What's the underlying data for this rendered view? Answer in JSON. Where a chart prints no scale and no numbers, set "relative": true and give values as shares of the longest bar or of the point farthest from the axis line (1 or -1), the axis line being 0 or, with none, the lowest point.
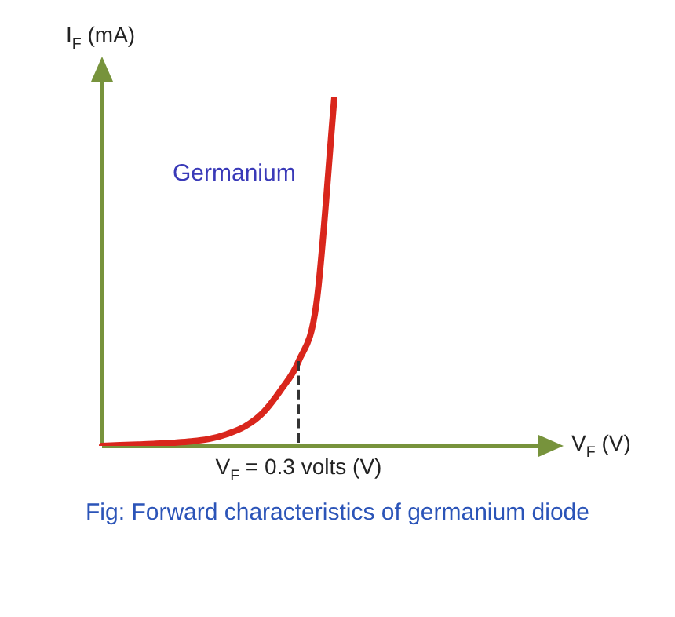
{
  "chart_data": {
    "type": "line",
    "relative": true,
    "ylabel": "I$_{F}$ (mA)",
    "categories": [
      null,
      null,
      null,
      null,
      null,
      null,
      null,
      null,
      null,
      null,
      null,
      null,
      null,
      null
    ],
    "series": [
      {
        "color": "#d9261c",
        "values": [
          0,
          0.002,
          0.004,
          0.006,
          0.009,
          0.013,
          0.02,
          0.034,
          0.056,
          0.095,
          0.16,
          0.243,
          0.41,
          1
        ]
      }
    ],
    "annotations": [
      "Germanium",
      "V$_{F}$ = 0.3 volts (V)",
      "Fig: Forward characteristics of germanium diode",
      "V$_{F}$ (V)"
    ],
    "marker": "none"
  }
}
